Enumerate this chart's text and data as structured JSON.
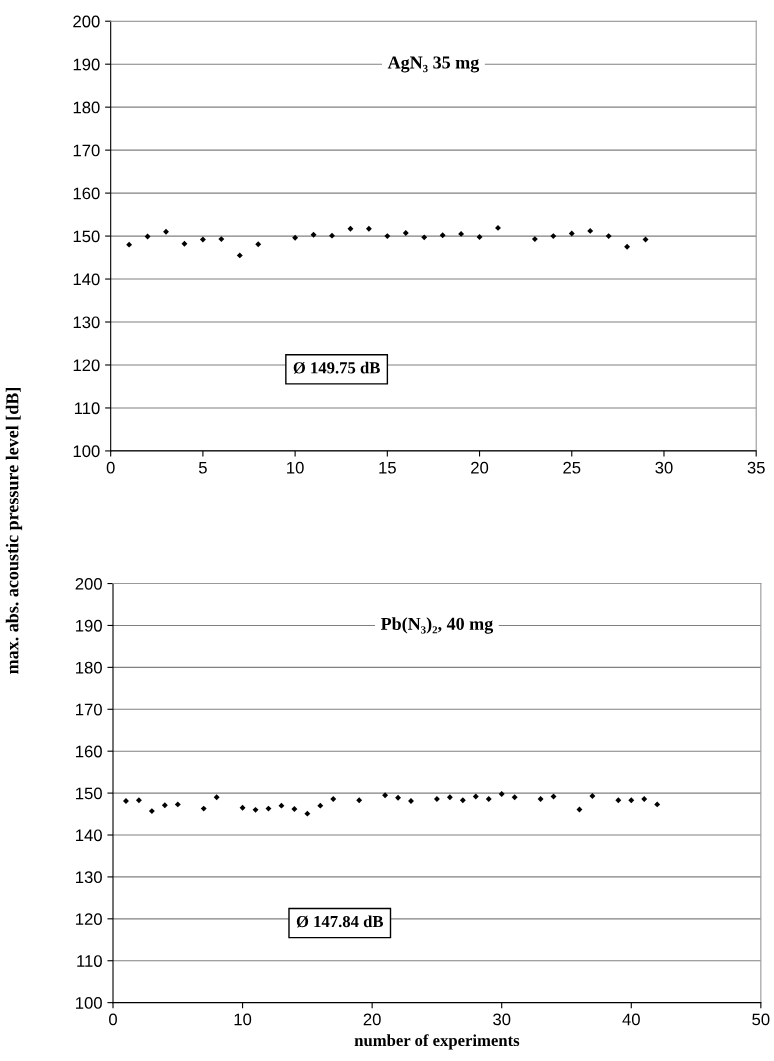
{
  "chart_data": [
    {
      "type": "scatter",
      "title": "AgN₃ 35 mg",
      "ylabel": "max. abs. acoustic pressure level [dB]",
      "annotations": [
        "Ø 149.75 dB"
      ],
      "xlim": [
        0,
        35
      ],
      "xticks": [
        0,
        5,
        10,
        15,
        20,
        25,
        30,
        35
      ],
      "ylim": [
        100,
        200
      ],
      "yticks": [
        100,
        110,
        120,
        130,
        140,
        150,
        160,
        170,
        180,
        190,
        200
      ],
      "grid": "y",
      "marker": "diamond",
      "series": [
        {
          "color": "#000000",
          "x": [
            1,
            2,
            3,
            4,
            5,
            6,
            7,
            8,
            10,
            11,
            12,
            13,
            14,
            15,
            16,
            17,
            18,
            19,
            20,
            21,
            23,
            24,
            25,
            26,
            27,
            28,
            29
          ],
          "values": [
            148,
            149.9,
            151,
            148.2,
            149.2,
            149.3,
            145.5,
            148.1,
            149.6,
            150.3,
            150.1,
            151.7,
            151.7,
            150,
            150.7,
            149.7,
            150.2,
            150.5,
            149.8,
            151.9,
            149.3,
            150,
            150.6,
            151.2,
            150,
            147.5,
            149.2
          ]
        }
      ]
    },
    {
      "type": "scatter",
      "title": "Pb(N₃)₂, 40 mg",
      "xlabel": "number of experiments",
      "annotations": [
        "Ø 147.84 dB"
      ],
      "xlim": [
        0,
        50
      ],
      "xticks": [
        0,
        10,
        20,
        30,
        40,
        50
      ],
      "ylim": [
        100,
        200
      ],
      "yticks": [
        100,
        110,
        120,
        130,
        140,
        150,
        160,
        170,
        180,
        190,
        200
      ],
      "grid": "y",
      "marker": "diamond",
      "series": [
        {
          "color": "#000000",
          "x": [
            1,
            2,
            3,
            4,
            5,
            7,
            8,
            10,
            11,
            12,
            13,
            14,
            15,
            16,
            17,
            19,
            21,
            22,
            23,
            25,
            26,
            27,
            28,
            29,
            30,
            31,
            33,
            34,
            36,
            37,
            39,
            40,
            41,
            42
          ],
          "values": [
            148.1,
            148.3,
            145.7,
            147.1,
            147.3,
            146.3,
            149,
            146.5,
            146,
            146.3,
            147,
            146.2,
            145.1,
            147,
            148.6,
            148.3,
            149.5,
            148.9,
            148.1,
            148.6,
            149,
            148.3,
            149.2,
            148.6,
            149.8,
            149,
            148.6,
            149.2,
            146.1,
            149.3,
            148.3,
            148.3,
            148.6,
            147.3
          ]
        }
      ]
    }
  ]
}
